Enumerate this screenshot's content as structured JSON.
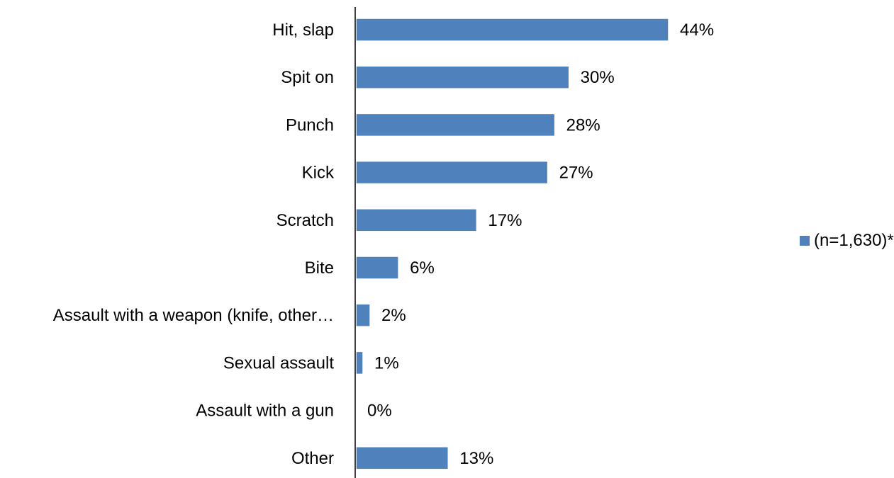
{
  "chart_data": {
    "type": "bar",
    "orientation": "horizontal",
    "categories": [
      "Hit, slap",
      "Spit on",
      "Punch",
      "Kick",
      "Scratch",
      "Bite",
      "Assault with a weapon (knife, other…",
      "Sexual assault",
      "Assault with a gun",
      "Other"
    ],
    "values": [
      44,
      30,
      28,
      27,
      17,
      6,
      2,
      1,
      0,
      13
    ],
    "value_labels": [
      "44%",
      "30%",
      "28%",
      "27%",
      "17%",
      "6%",
      "2%",
      "1%",
      "0%",
      "13%"
    ],
    "series": [
      {
        "name": "(n=1,630)*",
        "values": [
          44,
          30,
          28,
          27,
          17,
          6,
          2,
          1,
          0,
          13
        ]
      }
    ],
    "legend": {
      "label": "(n=1,630)*",
      "position": "right"
    },
    "xlim": [
      0,
      50
    ],
    "grid": false,
    "colors": {
      "bar": "#4F81BD",
      "bar_edge": "#ffffff",
      "axis": "#000000"
    }
  }
}
